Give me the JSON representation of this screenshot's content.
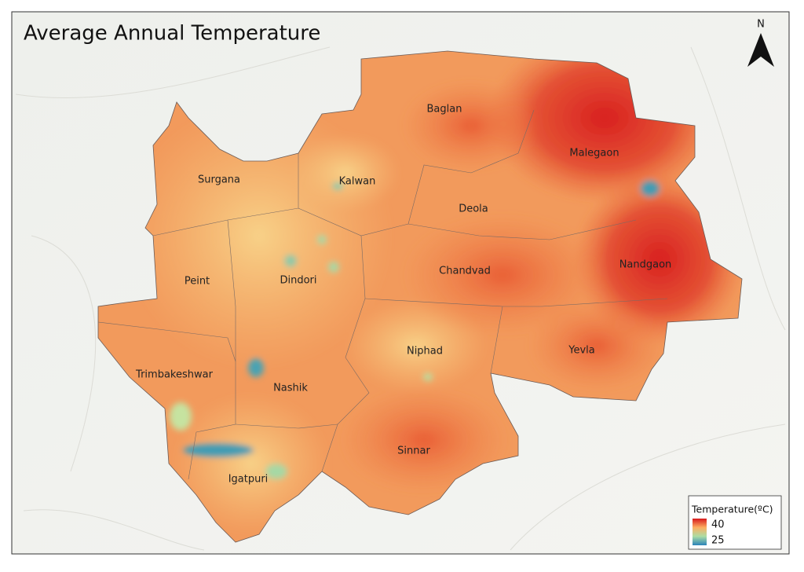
{
  "title": "Average Annual Temperature",
  "north": "N",
  "districts": [
    "Baglan",
    "Malegaon",
    "Surgana",
    "Kalwan",
    "Deola",
    "Chandvad",
    "Nandgaon",
    "Peint",
    "Dindori",
    "Niphad",
    "Yevla",
    "Trimbakeshwar",
    "Nashik",
    "Sinnar",
    "Igatpuri"
  ],
  "legend": {
    "title": "Temperature(ºC)",
    "max": 40,
    "min": 25,
    "colors": [
      "#d7191c",
      "#fdae61",
      "#abdda4",
      "#2b83ba"
    ]
  }
}
